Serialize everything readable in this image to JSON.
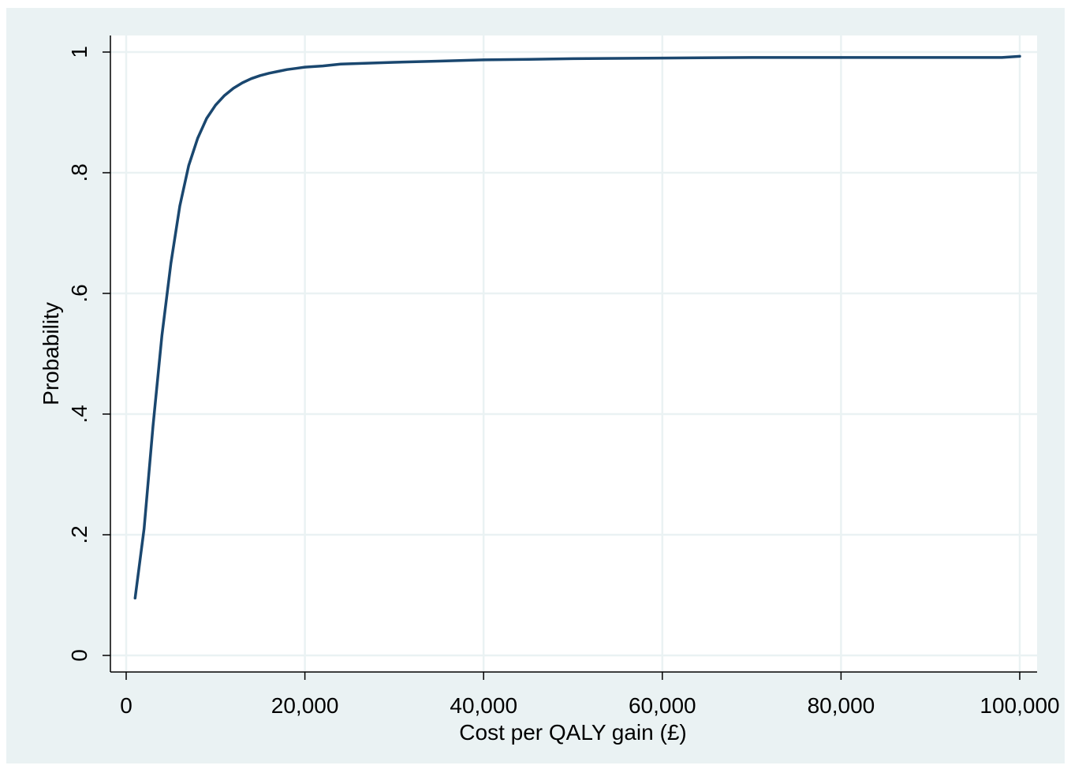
{
  "colors": {
    "outer_background": "#eaf2f3",
    "plot_background": "#ffffff",
    "grid": "#eaf2f3",
    "line": "#1a476f",
    "axis": "#000000"
  },
  "chart_data": {
    "type": "line",
    "title": "",
    "xlabel": "Cost per QALY gain (£)",
    "ylabel": "Probability",
    "xlim": [
      0,
      100000
    ],
    "ylim": [
      0,
      1
    ],
    "grid": true,
    "x_ticks": [
      0,
      20000,
      40000,
      60000,
      80000,
      100000
    ],
    "x_tick_labels": [
      "0",
      "20,000",
      "40,000",
      "60,000",
      "80,000",
      "100,000"
    ],
    "y_ticks": [
      0,
      0.2,
      0.4,
      0.6,
      0.8,
      1
    ],
    "y_tick_labels": [
      "0",
      ".2",
      ".4",
      ".6",
      ".8",
      "1"
    ],
    "series": [
      {
        "x": [
          1000,
          2000,
          3000,
          4000,
          5000,
          6000,
          7000,
          8000,
          9000,
          10000,
          11000,
          12000,
          13000,
          14000,
          15000,
          16000,
          17000,
          18000,
          19000,
          20000,
          22000,
          24000,
          26000,
          28000,
          30000,
          35000,
          40000,
          45000,
          50000,
          60000,
          70000,
          80000,
          90000,
          98000,
          100000
        ],
        "y": [
          0.095,
          0.21,
          0.38,
          0.53,
          0.65,
          0.745,
          0.812,
          0.857,
          0.89,
          0.912,
          0.928,
          0.94,
          0.949,
          0.956,
          0.961,
          0.965,
          0.968,
          0.971,
          0.973,
          0.975,
          0.977,
          0.98,
          0.981,
          0.982,
          0.983,
          0.985,
          0.987,
          0.988,
          0.989,
          0.99,
          0.991,
          0.991,
          0.991,
          0.991,
          0.993
        ]
      }
    ]
  }
}
